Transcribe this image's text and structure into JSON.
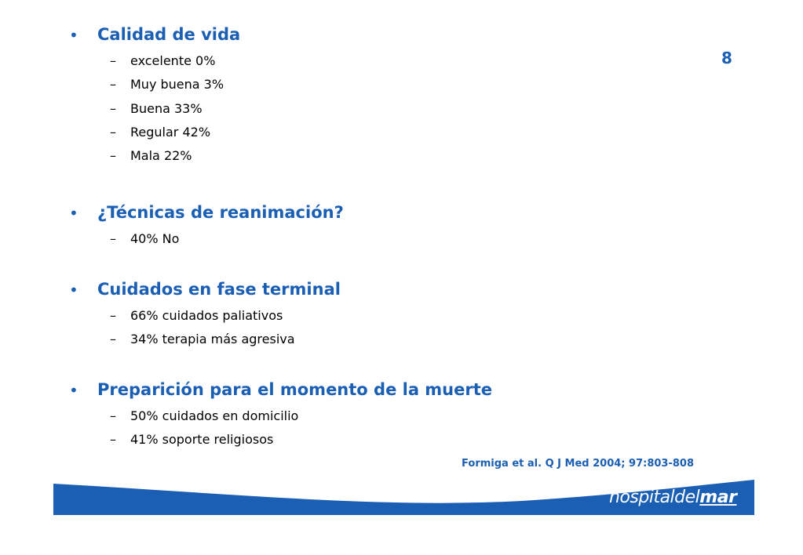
{
  "page_number": "8",
  "sections": [
    {
      "heading": "Calidad de vida",
      "items": [
        "excelente 0%",
        "Muy buena 3%",
        "Buena 33%",
        "Regular 42%",
        "Mala 22%"
      ]
    },
    {
      "heading": "¿Técnicas de reanimación?",
      "items": [
        "40% No"
      ]
    },
    {
      "heading": "Cuidados en fase terminal",
      "items": [
        "66% cuidados paliativos",
        "34% terapia más agresiva"
      ]
    },
    {
      "heading": "Preparición para el momento de la muerte",
      "items": [
        "50% cuidados en domicilio",
        "41% soporte religiosos"
      ]
    }
  ],
  "citation": "Formiga et al. Q J Med 2004; 97:803-808",
  "logo": {
    "part1": "hospital",
    "part2": "del",
    "part3": "mar"
  }
}
